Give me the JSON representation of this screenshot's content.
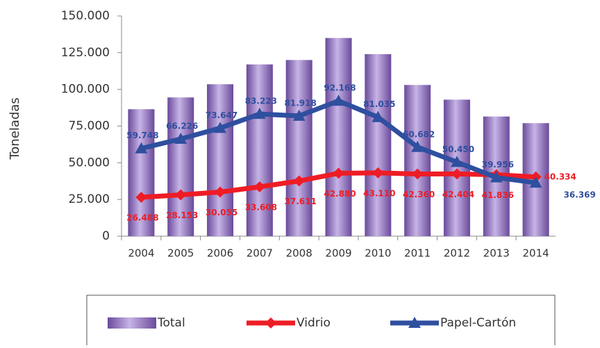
{
  "chart_data": {
    "type": "bar",
    "ylabel": "Toneladas",
    "categories": [
      "2004",
      "2005",
      "2006",
      "2007",
      "2008",
      "2009",
      "2010",
      "2011",
      "2012",
      "2013",
      "2014"
    ],
    "series": [
      {
        "name": "Total",
        "type": "bar",
        "color": "#8e6fb8",
        "values": [
          86500,
          94500,
          103500,
          117000,
          120000,
          135000,
          124000,
          103000,
          93000,
          81500,
          77000
        ]
      },
      {
        "name": "Vidrio",
        "type": "line",
        "marker": "diamond",
        "color": "#ee1c25",
        "values": [
          26488,
          28153,
          30055,
          33608,
          37611,
          42880,
          43110,
          42360,
          42404,
          41836,
          40334
        ],
        "value_labels": [
          "26.488",
          "28.153",
          "30.055",
          "33.608",
          "37.611",
          "42.880",
          "43.110",
          "42.360",
          "42.404",
          "41.836",
          "40.334"
        ]
      },
      {
        "name": "Papel-Cartón",
        "type": "line",
        "marker": "triangle",
        "color": "#2f4f9f",
        "values": [
          59748,
          66226,
          73647,
          83223,
          81918,
          92168,
          81035,
          60682,
          50450,
          39956,
          36369
        ],
        "value_labels": [
          "59.748",
          "66.226",
          "73.647",
          "83.223",
          "81.918",
          "92.168",
          "81.035",
          "60.682",
          "50.450",
          "39.956",
          "36.369"
        ]
      }
    ],
    "ylim": [
      0,
      150000
    ],
    "yticks": [
      0,
      {
        "value": 25000,
        "label": "25.000"
      },
      {
        "value": 50000,
        "label": "50.000"
      },
      {
        "value": 75000,
        "label": "75.000"
      },
      {
        "value": 100000,
        "label": "100.000"
      },
      {
        "value": 125000,
        "label": "125.000"
      },
      {
        "value": 150000,
        "label": "150.000"
      }
    ],
    "grid": false,
    "legend": "bottom"
  }
}
